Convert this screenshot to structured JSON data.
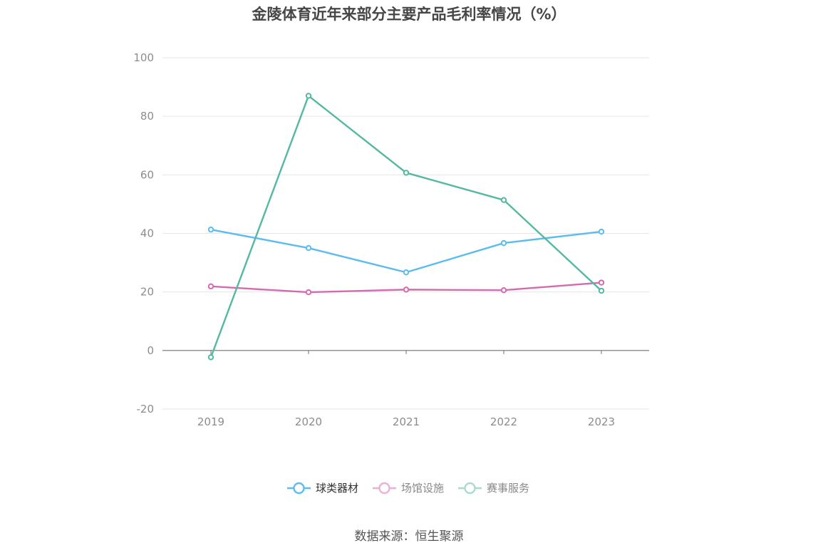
{
  "chart_data": {
    "type": "line",
    "title": "金陵体育近年来部分主要产品毛利率情况（%）",
    "categories": [
      "2019",
      "2020",
      "2021",
      "2022",
      "2023"
    ],
    "series": [
      {
        "name": "球类器材",
        "values": [
          41.3,
          35.0,
          26.7,
          36.7,
          40.6
        ],
        "color": "#5bbcef"
      },
      {
        "name": "场馆设施",
        "values": [
          21.9,
          19.9,
          20.8,
          20.6,
          23.2
        ],
        "color": "#d56ab0"
      },
      {
        "name": "赛事服务",
        "values": [
          -2.3,
          87.0,
          60.7,
          51.4,
          20.4
        ],
        "color": "#55b8a0"
      }
    ],
    "ylim": [
      -20,
      100
    ],
    "yticks": [
      -20,
      0,
      20,
      40,
      60,
      80,
      100
    ],
    "grid": true,
    "legend_position": "bottom"
  },
  "source_note": "数据来源：恒生聚源"
}
